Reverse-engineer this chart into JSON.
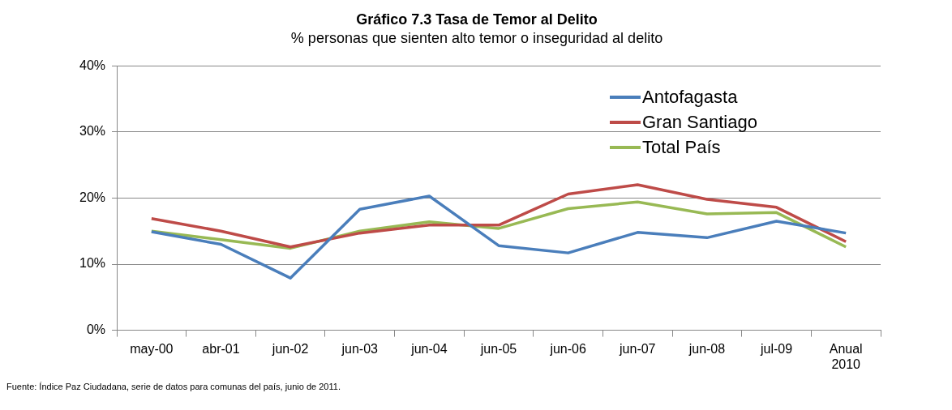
{
  "chart_data": {
    "type": "line",
    "title": "Gráfico 7.3 Tasa de Temor al Delito",
    "subtitle": "% personas que sienten alto temor o inseguridad al delito",
    "categories": [
      "may-00",
      "abr-01",
      "jun-02",
      "jun-03",
      "jun-04",
      "jun-05",
      "jun-06",
      "jun-07",
      "jun-08",
      "jul-09",
      "Anual 2010"
    ],
    "series": [
      {
        "name": "Antofagasta",
        "color": "#4a7ebb",
        "values": [
          14.9,
          13,
          7.9,
          18.3,
          20.3,
          12.8,
          11.7,
          14.8,
          14,
          16.5,
          14.7
        ]
      },
      {
        "name": "Gran Santiago",
        "color": "#be4b48",
        "values": [
          16.9,
          15,
          12.6,
          14.7,
          15.9,
          15.9,
          20.6,
          22,
          19.8,
          18.6,
          13.4
        ]
      },
      {
        "name": "Total País",
        "color": "#98b954",
        "values": [
          15,
          13.7,
          12.4,
          15,
          16.4,
          15.4,
          18.4,
          19.4,
          17.6,
          17.8,
          12.6
        ]
      }
    ],
    "ylim": [
      0,
      40
    ],
    "yticks": [
      {
        "value": 0,
        "label": "0%"
      },
      {
        "value": 10,
        "label": "10%"
      },
      {
        "value": 20,
        "label": "20%"
      },
      {
        "value": 30,
        "label": "30%"
      },
      {
        "value": 40,
        "label": "40%"
      }
    ],
    "grid": "y",
    "legend": "top right",
    "marker": "none",
    "line_style": "solid",
    "annotations": [
      "Fuente: Índice Paz Ciudadana, serie de datos para comunas del país, junio de 2011."
    ]
  }
}
